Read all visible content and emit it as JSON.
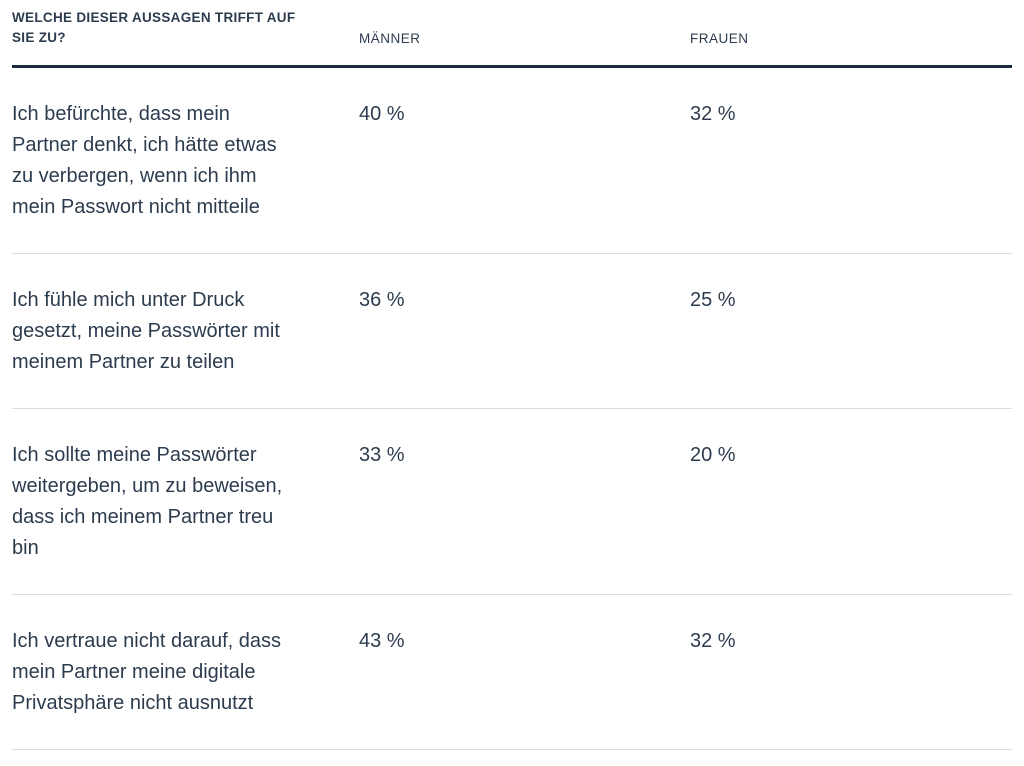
{
  "table": {
    "header": {
      "question_label": "Welche dieser Aussagen trifft auf\nSie zu?",
      "col_men": "Männer",
      "col_women": "Frauen"
    },
    "rows": [
      {
        "statement": "Ich befürchte, dass mein\nPartner denkt, ich hätte etwas\nzu verbergen, wenn ich ihm\nmein Passwort nicht mitteile",
        "men": "40 %",
        "women": "32 %"
      },
      {
        "statement": "Ich fühle mich unter Druck\ngesetzt, meine Passwörter mit\nmeinem Partner zu teilen",
        "men": "36 %",
        "women": "25 %"
      },
      {
        "statement": "Ich sollte meine Passwörter\nweitergeben, um zu beweisen,\ndass ich meinem Partner treu\nbin",
        "men": "33 %",
        "women": "20 %"
      },
      {
        "statement": "Ich vertraue nicht darauf, dass\nmein Partner meine digitale\nPrivatsphäre nicht ausnutzt",
        "men": "43 %",
        "women": "32 %"
      }
    ],
    "colors": {
      "text": "#2c3c4e",
      "heavy_rule": "#1b2a3a",
      "light_rule": "#dadde1",
      "background": "#ffffff"
    }
  },
  "chart_data": {
    "type": "table",
    "title": "Welche dieser Aussagen trifft auf Sie zu?",
    "categories": [
      "Ich befürchte, dass mein Partner denkt, ich hätte etwas zu verbergen, wenn ich ihm mein Passwort nicht mitteile",
      "Ich fühle mich unter Druck gesetzt, meine Passwörter mit meinem Partner zu teilen",
      "Ich sollte meine Passwörter weitergeben, um zu beweisen, dass ich meinem Partner treu bin",
      "Ich vertraue nicht darauf, dass mein Partner meine digitale Privatsphäre nicht ausnutzt"
    ],
    "series": [
      {
        "name": "Männer",
        "values": [
          40,
          36,
          33,
          43
        ]
      },
      {
        "name": "Frauen",
        "values": [
          32,
          25,
          20,
          32
        ]
      }
    ],
    "unit": "%",
    "layout": {
      "value_format": "NN %",
      "grid": "horizontal-rules-only",
      "legend_position": "column-headers"
    }
  }
}
